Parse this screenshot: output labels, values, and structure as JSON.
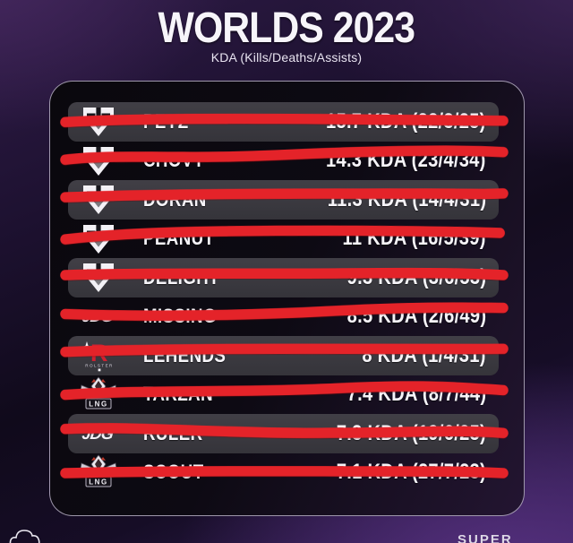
{
  "header": {
    "title": "WORLDS 2023",
    "subtitle": "KDA (Kills/Deaths/Assists)"
  },
  "teams": {
    "geng": {
      "label": ""
    },
    "jdg": {
      "label": "JDG"
    },
    "kt": {
      "label": "ROLSTER"
    },
    "lng": {
      "label": "LNG"
    }
  },
  "leaderboard": {
    "rows": [
      {
        "team": "geng",
        "player": "PEYZ",
        "kda": "15.7 KDA (22/3/25)",
        "struck": true
      },
      {
        "team": "geng",
        "player": "CHOVY",
        "kda": "14.3 KDA (23/4/34)",
        "struck": true
      },
      {
        "team": "geng",
        "player": "DORAN",
        "kda": "11.3 KDA (14/4/31)",
        "struck": true
      },
      {
        "team": "geng",
        "player": "PEANUT",
        "kda": "11 KDA (16/5/39)",
        "struck": true
      },
      {
        "team": "geng",
        "player": "DELIGHT",
        "kda": "9.3 KDA (3/6/53)",
        "struck": true
      },
      {
        "team": "jdg",
        "player": "MISSING",
        "kda": "8.5 KDA (2/6/49)",
        "struck": true
      },
      {
        "team": "kt",
        "player": "LEHENDS",
        "kda": "8 KDA (1/4/31)",
        "struck": true
      },
      {
        "team": "lng",
        "player": "TARZAN",
        "kda": "7.4 KDA (8/7/44)",
        "struck": true
      },
      {
        "team": "jdg",
        "player": "RULER",
        "kda": "7.3 KDA (19/6/25)",
        "struck": true
      },
      {
        "team": "lng",
        "player": "SCOUT",
        "kda": "7.1 KDA (27/7/23)",
        "struck": true
      }
    ]
  },
  "footer": {
    "watermark_partial": "SUPER"
  },
  "colors": {
    "accent_red": "#e42329",
    "row_pill": "#3b3a41",
    "panel_border": "#d7cee6",
    "text": "#f6f4f8",
    "background_purple": "#36205a"
  }
}
